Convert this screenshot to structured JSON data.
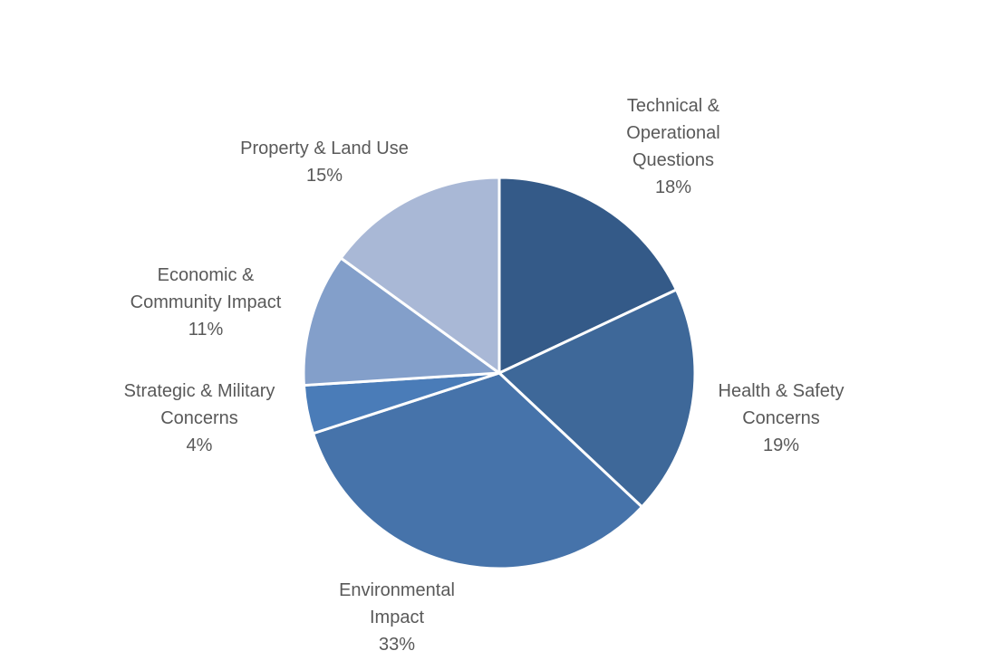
{
  "chart_data": {
    "type": "pie",
    "title": "",
    "start": "top",
    "direction": "clockwise",
    "slices": [
      {
        "label_lines": [
          "Technical &",
          "Operational",
          "Questions"
        ],
        "label": "Technical & Operational Questions",
        "value": 18,
        "value_label": "18%",
        "color": "#345a88"
      },
      {
        "label_lines": [
          "Health & Safety",
          "Concerns"
        ],
        "label": "Health & Safety Concerns",
        "value": 19,
        "value_label": "19%",
        "color": "#3e6899"
      },
      {
        "label_lines": [
          "Environmental",
          "Impact"
        ],
        "label": "Environmental Impact",
        "value": 33,
        "value_label": "33%",
        "color": "#4673aa"
      },
      {
        "label_lines": [
          "Strategic & Military",
          "Concerns"
        ],
        "label": "Strategic & Military Concerns",
        "value": 4,
        "value_label": "4%",
        "color": "#4a7cb8"
      },
      {
        "label_lines": [
          "Economic &",
          "Community Impact"
        ],
        "label": "Economic & Community Impact",
        "value": 11,
        "value_label": "11%",
        "color": "#839fca"
      },
      {
        "label_lines": [
          "Property & Land Use"
        ],
        "label": "Property & Land Use",
        "value": 15,
        "value_label": "15%",
        "color": "#a9b8d6"
      }
    ]
  }
}
